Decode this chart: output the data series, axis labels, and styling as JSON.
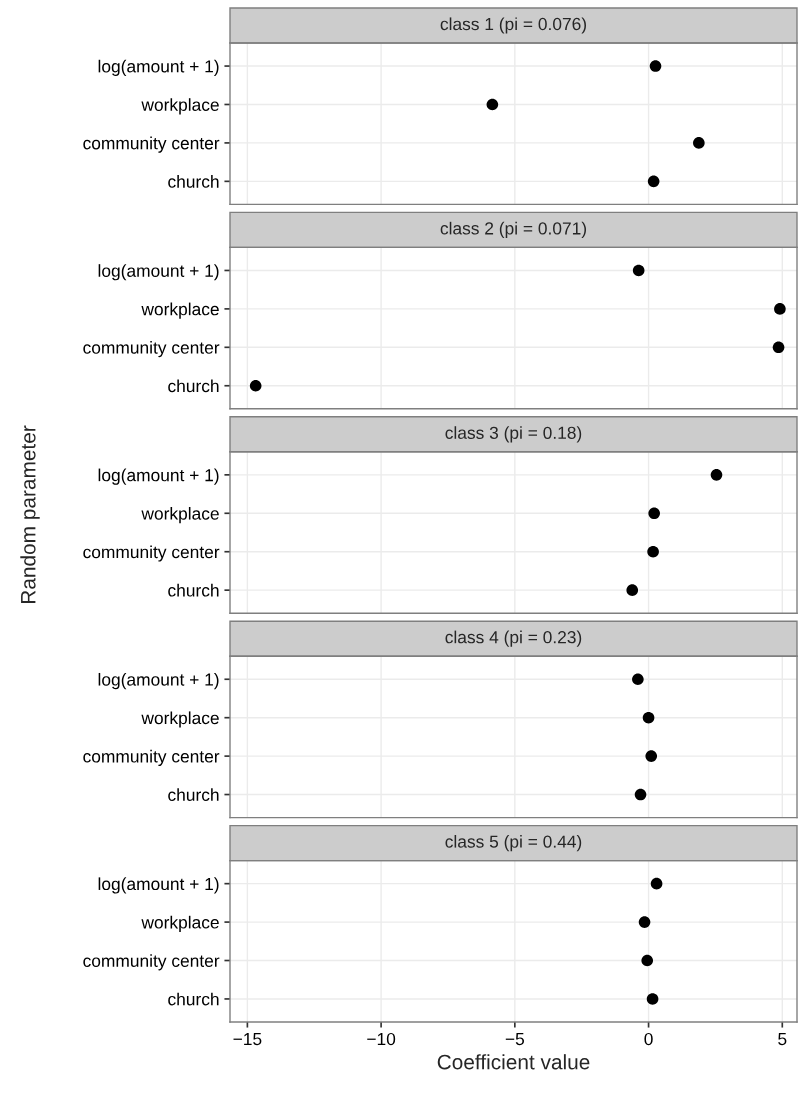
{
  "chart_data": [
    {
      "type": "scatter",
      "orientation": "horizontal",
      "title": "class 1 (pi = 0.076)",
      "categories": [
        "log(amount + 1)",
        "workplace",
        "community center",
        "church"
      ],
      "values": [
        0.26,
        -5.84,
        1.88,
        0.19
      ],
      "color": "#000000",
      "marker": "circle",
      "xlim": [
        -15.65,
        5.55
      ],
      "xticks": [
        {
          "value": -15,
          "label": null
        },
        {
          "value": -10,
          "label": null
        },
        {
          "value": -5,
          "label": null
        },
        {
          "value": 0,
          "label": null
        },
        {
          "value": 5,
          "label": null
        }
      ],
      "grid": true,
      "tick_labels": "y"
    },
    {
      "type": "scatter",
      "orientation": "horizontal",
      "title": "class 2 (pi = 0.071)",
      "categories": [
        "log(amount + 1)",
        "workplace",
        "community center",
        "church"
      ],
      "values": [
        -0.37,
        4.91,
        4.86,
        -14.69
      ],
      "color": "#000000",
      "marker": "circle",
      "xlim": [
        -15.65,
        5.55
      ],
      "xticks": [
        {
          "value": -15,
          "label": null
        },
        {
          "value": -10,
          "label": null
        },
        {
          "value": -5,
          "label": null
        },
        {
          "value": 0,
          "label": null
        },
        {
          "value": 5,
          "label": null
        }
      ],
      "grid": true,
      "tick_labels": "y"
    },
    {
      "type": "scatter",
      "orientation": "horizontal",
      "title": "class 3 (pi = 0.18)",
      "ylabel": "Random parameter",
      "categories": [
        "log(amount + 1)",
        "workplace",
        "community center",
        "church"
      ],
      "values": [
        2.54,
        0.21,
        0.17,
        -0.61
      ],
      "color": "#000000",
      "marker": "circle",
      "xlim": [
        -15.65,
        5.55
      ],
      "xticks": [
        {
          "value": -15,
          "label": null
        },
        {
          "value": -10,
          "label": null
        },
        {
          "value": -5,
          "label": null
        },
        {
          "value": 0,
          "label": null
        },
        {
          "value": 5,
          "label": null
        }
      ],
      "grid": true,
      "tick_labels": "y"
    },
    {
      "type": "scatter",
      "orientation": "horizontal",
      "title": "class 4 (pi = 0.23)",
      "categories": [
        "log(amount + 1)",
        "workplace",
        "community center",
        "church"
      ],
      "values": [
        -0.4,
        0.0,
        0.1,
        -0.3
      ],
      "color": "#000000",
      "marker": "circle",
      "xlim": [
        -15.65,
        5.55
      ],
      "xticks": [
        {
          "value": -15,
          "label": null
        },
        {
          "value": -10,
          "label": null
        },
        {
          "value": -5,
          "label": null
        },
        {
          "value": 0,
          "label": null
        },
        {
          "value": 5,
          "label": null
        }
      ],
      "grid": true,
      "tick_labels": "y"
    },
    {
      "type": "scatter",
      "orientation": "horizontal",
      "title": "class 5 (pi = 0.44)",
      "xlabel": "Coefficient value",
      "categories": [
        "log(amount + 1)",
        "workplace",
        "community center",
        "church"
      ],
      "values": [
        0.3,
        -0.15,
        -0.05,
        0.15
      ],
      "color": "#000000",
      "marker": "circle",
      "xlim": [
        -15.65,
        5.55
      ],
      "xticks": [
        {
          "value": -15,
          "label": "−15"
        },
        {
          "value": -10,
          "label": "−10"
        },
        {
          "value": -5,
          "label": "−5"
        },
        0,
        5
      ],
      "grid": true
    }
  ]
}
